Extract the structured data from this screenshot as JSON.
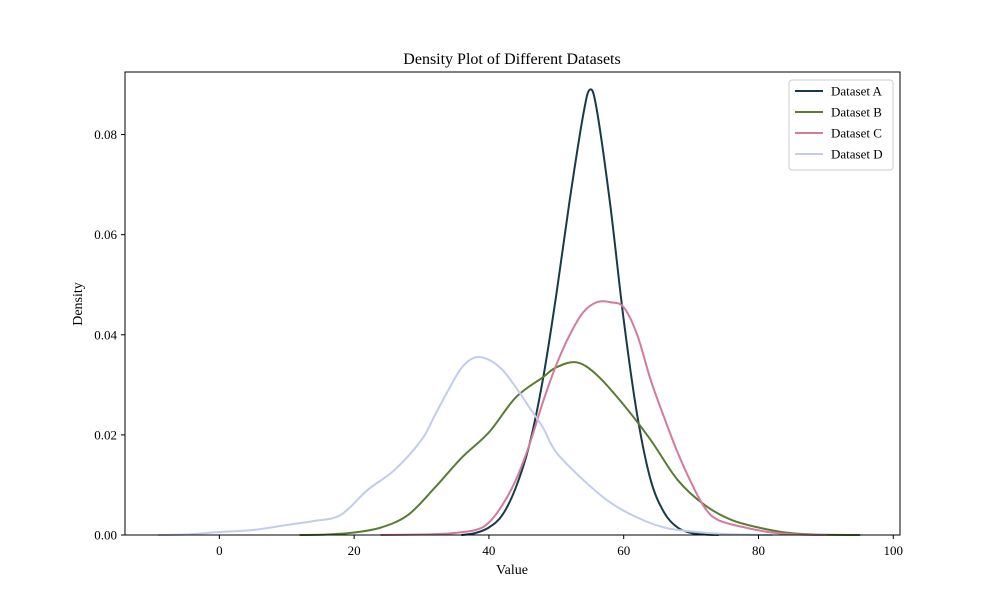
{
  "chart_data": {
    "type": "line",
    "title": "Density Plot of Different Datasets",
    "xlabel": "Value",
    "ylabel": "Density",
    "xlim": [
      -14,
      101
    ],
    "ylim": [
      0,
      0.0925
    ],
    "xticks": [
      0,
      20,
      40,
      60,
      80,
      100
    ],
    "yticks": [
      0.0,
      0.02,
      0.04,
      0.06,
      0.08
    ],
    "ytick_labels": [
      "0.00",
      "0.02",
      "0.04",
      "0.06",
      "0.08"
    ],
    "legend_position": "top-right",
    "grid": false,
    "series": [
      {
        "name": "Dataset A",
        "color": "#173a4a",
        "points": [
          [
            36,
            0
          ],
          [
            38,
            0.0004
          ],
          [
            40,
            0.0015
          ],
          [
            42,
            0.004
          ],
          [
            44,
            0.0095
          ],
          [
            46,
            0.018
          ],
          [
            48,
            0.031
          ],
          [
            50,
            0.048
          ],
          [
            52,
            0.067
          ],
          [
            54,
            0.084
          ],
          [
            55,
            0.089
          ],
          [
            56,
            0.085
          ],
          [
            58,
            0.066
          ],
          [
            60,
            0.043
          ],
          [
            62,
            0.024
          ],
          [
            64,
            0.011
          ],
          [
            66,
            0.0045
          ],
          [
            68,
            0.0015
          ],
          [
            70,
            0.0004
          ],
          [
            72,
            0.0001
          ],
          [
            74,
            0
          ]
        ]
      },
      {
        "name": "Dataset B",
        "color": "#5a7b33",
        "points": [
          [
            12,
            0
          ],
          [
            16,
            0.0001
          ],
          [
            20,
            0.0005
          ],
          [
            24,
            0.0015
          ],
          [
            28,
            0.004
          ],
          [
            32,
            0.0095
          ],
          [
            36,
            0.0155
          ],
          [
            40,
            0.0205
          ],
          [
            44,
            0.0275
          ],
          [
            48,
            0.0315
          ],
          [
            50,
            0.0335
          ],
          [
            53,
            0.0345
          ],
          [
            56,
            0.032
          ],
          [
            60,
            0.026
          ],
          [
            64,
            0.019
          ],
          [
            68,
            0.011
          ],
          [
            72,
            0.006
          ],
          [
            76,
            0.003
          ],
          [
            80,
            0.0015
          ],
          [
            84,
            0.0005
          ],
          [
            88,
            0.0001
          ],
          [
            95,
            0
          ]
        ]
      },
      {
        "name": "Dataset C",
        "color": "#d27b9a",
        "points": [
          [
            24,
            0
          ],
          [
            30,
            0.0001
          ],
          [
            34,
            0.0003
          ],
          [
            38,
            0.001
          ],
          [
            40,
            0.0025
          ],
          [
            42,
            0.006
          ],
          [
            44,
            0.011
          ],
          [
            46,
            0.018
          ],
          [
            48,
            0.0265
          ],
          [
            50,
            0.034
          ],
          [
            52,
            0.04
          ],
          [
            54,
            0.0445
          ],
          [
            56,
            0.0465
          ],
          [
            58,
            0.0465
          ],
          [
            60,
            0.0455
          ],
          [
            62,
            0.04
          ],
          [
            64,
            0.031
          ],
          [
            66,
            0.0235
          ],
          [
            68,
            0.0165
          ],
          [
            70,
            0.0105
          ],
          [
            72,
            0.0055
          ],
          [
            74,
            0.003
          ],
          [
            78,
            0.0015
          ],
          [
            82,
            0.0005
          ],
          [
            86,
            0.0001
          ],
          [
            90,
            0
          ]
        ]
      },
      {
        "name": "Dataset D",
        "color": "#c3ccec",
        "points": [
          [
            -9,
            0
          ],
          [
            -5,
            0.0001
          ],
          [
            0,
            0.0006
          ],
          [
            5,
            0.001
          ],
          [
            10,
            0.002
          ],
          [
            14,
            0.0028
          ],
          [
            18,
            0.004
          ],
          [
            22,
            0.009
          ],
          [
            26,
            0.013
          ],
          [
            30,
            0.019
          ],
          [
            32,
            0.024
          ],
          [
            34,
            0.029
          ],
          [
            36,
            0.0335
          ],
          [
            38,
            0.0355
          ],
          [
            40,
            0.035
          ],
          [
            42,
            0.033
          ],
          [
            44,
            0.0295
          ],
          [
            46,
            0.0255
          ],
          [
            48,
            0.0215
          ],
          [
            50,
            0.0165
          ],
          [
            54,
            0.011
          ],
          [
            58,
            0.0065
          ],
          [
            62,
            0.0035
          ],
          [
            66,
            0.0015
          ],
          [
            70,
            0.0007
          ],
          [
            75,
            0.0002
          ],
          [
            82,
            0
          ]
        ]
      }
    ]
  }
}
